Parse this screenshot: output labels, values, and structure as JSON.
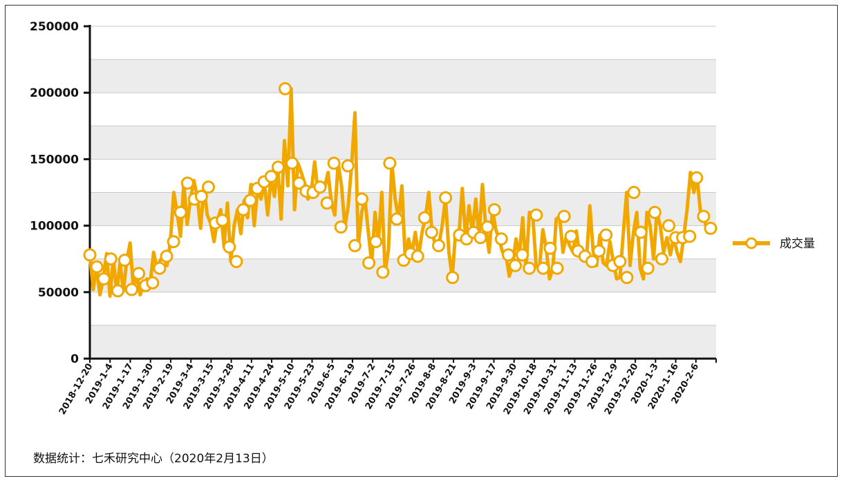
{
  "source_note": "数据统计：七禾研究中心（2020年2月13日）",
  "legend": {
    "label": "成交量",
    "placement": "right"
  },
  "colors": {
    "series": "#f0a800",
    "band": "#ececec",
    "grid": "#c8c8c8",
    "marker_fill": "#ffffff"
  },
  "chart_data": {
    "type": "line",
    "title": "",
    "xlabel": "",
    "ylabel": "",
    "ylim": [
      0,
      250000
    ],
    "yticks": [
      0,
      50000,
      100000,
      150000,
      200000,
      250000
    ],
    "grid": true,
    "xtick_labels": [
      "2018-12-20",
      "2019-1-4",
      "2019-1-17",
      "2019-1-30",
      "2019-2-19",
      "2019-3-4",
      "2019-3-15",
      "2019-3-28",
      "2019-4-11",
      "2019-4-24",
      "2019-5-10",
      "2019-5-23",
      "2019-6-5",
      "2019-6-19",
      "2019-7-2",
      "2019-7-15",
      "2019-7-26",
      "2019-8-8",
      "2019-8-21",
      "2019-9-3",
      "2019-9-17",
      "2019-9-30",
      "2019-10-18",
      "2019-10-31",
      "2019-11-13",
      "2019-11-26",
      "2019-12-9",
      "2019-12-20",
      "2020-1-3",
      "2020-1-16",
      "2020-2-6"
    ],
    "series": [
      {
        "name": "成交量",
        "values": [
          78000,
          52000,
          69000,
          48000,
          60000,
          79000,
          47000,
          75000,
          50000,
          72000,
          51000,
          74000,
          87000,
          52000,
          64000,
          48000,
          55000,
          60000,
          57000,
          80000,
          68000,
          74000,
          77000,
          70000,
          88000,
          125000,
          110000,
          92000,
          132000,
          101000,
          120000,
          134000,
          122000,
          98000,
          129000,
          108000,
          102000,
          88000,
          104000,
          112000,
          84000,
          117000,
          73000,
          100000,
          112000,
          94000,
          119000,
          106000,
          131000,
          100000,
          128000,
          120000,
          133000,
          108000,
          137000,
          122000,
          144000,
          105000,
          164000,
          130000,
          203000,
          112000,
          147000,
          140000,
          132000,
          120000,
          126000,
          148000,
          125000,
          132000,
          129000,
          140000,
          117000,
          108000,
          147000,
          130000,
          99000,
          115000,
          145000,
          185000,
          85000,
          110000,
          120000,
          95000,
          72000,
          110000,
          88000,
          125000,
          65000,
          82000,
          147000,
          120000,
          105000,
          130000,
          74000,
          90000,
          79000,
          95000,
          77000,
          95000,
          106000,
          125000,
          95000,
          85000,
          85000,
          100000,
          121000,
          80000,
          61000,
          95000,
          93000,
          128000,
          90000,
          115000,
          95000,
          120000,
          91000,
          131000,
          99000,
          80000,
          112000,
          97000,
          90000,
          80000,
          78000,
          62000,
          70000,
          90000,
          78000,
          106000,
          68000,
          110000,
          108000,
          70000,
          68000,
          97000,
          83000,
          60000,
          68000,
          105000,
          107000,
          80000,
          92000,
          85000,
          80000,
          96000,
          77000,
          80000,
          73000,
          115000,
          81000,
          70000,
          93000,
          72000,
          70000,
          88000,
          73000,
          60000,
          61000,
          95000,
          125000,
          70000,
          95000,
          110000,
          68000,
          60000,
          110000,
          100000,
          75000,
          110000,
          100000,
          80000,
          91000,
          78000,
          91000,
          80000,
          73000,
          92000,
          112000,
          140000,
          125000,
          136000,
          110000,
          107000,
          95000,
          98000
        ]
      }
    ],
    "markers": [
      {
        "x": 0,
        "y": 78000
      },
      {
        "x": 1,
        "y": 69000
      },
      {
        "x": 2,
        "y": 60000
      },
      {
        "x": 3,
        "y": 75000
      },
      {
        "x": 4,
        "y": 51000
      },
      {
        "x": 5,
        "y": 74000
      },
      {
        "x": 6,
        "y": 52000
      },
      {
        "x": 7,
        "y": 64000
      },
      {
        "x": 8,
        "y": 55000
      },
      {
        "x": 9,
        "y": 57000
      },
      {
        "x": 10,
        "y": 68000
      },
      {
        "x": 11,
        "y": 77000
      },
      {
        "x": 12,
        "y": 88000
      },
      {
        "x": 13,
        "y": 110000
      },
      {
        "x": 14,
        "y": 132000
      },
      {
        "x": 15,
        "y": 120000
      },
      {
        "x": 16,
        "y": 122000
      },
      {
        "x": 17,
        "y": 129000
      },
      {
        "x": 18,
        "y": 102000
      },
      {
        "x": 19,
        "y": 104000
      },
      {
        "x": 20,
        "y": 84000
      },
      {
        "x": 21,
        "y": 73000
      },
      {
        "x": 22,
        "y": 112000
      },
      {
        "x": 23,
        "y": 119000
      },
      {
        "x": 24,
        "y": 128000
      },
      {
        "x": 25,
        "y": 133000
      },
      {
        "x": 26,
        "y": 137000
      },
      {
        "x": 27,
        "y": 144000
      },
      {
        "x": 28,
        "y": 203000
      },
      {
        "x": 29,
        "y": 147000
      },
      {
        "x": 30,
        "y": 132000
      },
      {
        "x": 31,
        "y": 126000
      },
      {
        "x": 32,
        "y": 125000
      },
      {
        "x": 33,
        "y": 129000
      },
      {
        "x": 34,
        "y": 117000
      },
      {
        "x": 35,
        "y": 147000
      },
      {
        "x": 36,
        "y": 99000
      },
      {
        "x": 37,
        "y": 145000
      },
      {
        "x": 38,
        "y": 85000
      },
      {
        "x": 39,
        "y": 120000
      },
      {
        "x": 40,
        "y": 72000
      },
      {
        "x": 41,
        "y": 88000
      },
      {
        "x": 42,
        "y": 65000
      },
      {
        "x": 43,
        "y": 147000
      },
      {
        "x": 44,
        "y": 105000
      },
      {
        "x": 45,
        "y": 74000
      },
      {
        "x": 46,
        "y": 79000
      },
      {
        "x": 47,
        "y": 77000
      },
      {
        "x": 48,
        "y": 106000
      },
      {
        "x": 49,
        "y": 95000
      },
      {
        "x": 50,
        "y": 85000
      },
      {
        "x": 51,
        "y": 121000
      },
      {
        "x": 52,
        "y": 61000
      },
      {
        "x": 53,
        "y": 93000
      },
      {
        "x": 54,
        "y": 90000
      },
      {
        "x": 55,
        "y": 95000
      },
      {
        "x": 56,
        "y": 91000
      },
      {
        "x": 57,
        "y": 99000
      },
      {
        "x": 58,
        "y": 112000
      },
      {
        "x": 59,
        "y": 90000
      },
      {
        "x": 60,
        "y": 78000
      },
      {
        "x": 61,
        "y": 70000
      },
      {
        "x": 62,
        "y": 78000
      },
      {
        "x": 63,
        "y": 68000
      },
      {
        "x": 64,
        "y": 108000
      },
      {
        "x": 65,
        "y": 68000
      },
      {
        "x": 66,
        "y": 83000
      },
      {
        "x": 67,
        "y": 68000
      },
      {
        "x": 68,
        "y": 107000
      },
      {
        "x": 69,
        "y": 92000
      },
      {
        "x": 70,
        "y": 81000
      },
      {
        "x": 71,
        "y": 77000
      },
      {
        "x": 72,
        "y": 73000
      },
      {
        "x": 73,
        "y": 81000
      },
      {
        "x": 74,
        "y": 93000
      },
      {
        "x": 75,
        "y": 70000
      },
      {
        "x": 76,
        "y": 73000
      },
      {
        "x": 77,
        "y": 61000
      },
      {
        "x": 78,
        "y": 125000
      },
      {
        "x": 79,
        "y": 95000
      },
      {
        "x": 80,
        "y": 68000
      },
      {
        "x": 81,
        "y": 110000
      },
      {
        "x": 82,
        "y": 75000
      },
      {
        "x": 83,
        "y": 100000
      },
      {
        "x": 84,
        "y": 91000
      },
      {
        "x": 85,
        "y": 91000
      },
      {
        "x": 86,
        "y": 92000
      },
      {
        "x": 87,
        "y": 136000
      },
      {
        "x": 88,
        "y": 107000
      },
      {
        "x": 89,
        "y": 98000
      }
    ]
  }
}
